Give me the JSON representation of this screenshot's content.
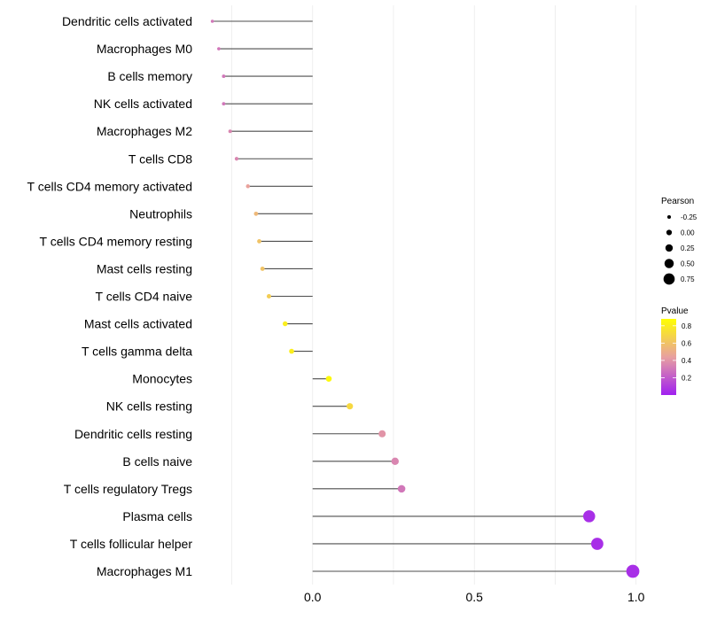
{
  "chart_data": {
    "type": "lollipop",
    "categories": [
      "Dendritic cells activated",
      "Macrophages M0",
      "B cells memory",
      "NK cells activated",
      "Macrophages M2",
      "T cells CD8",
      "T cells CD4 memory activated",
      "Neutrophils",
      "T cells CD4 memory resting",
      "Mast cells resting",
      "T cells CD4 naive",
      "Mast cells activated",
      "T cells gamma delta",
      "Monocytes",
      "NK cells resting",
      "Dendritic cells resting",
      "B cells naive",
      "T cells regulatory  Tregs",
      "Plasma cells",
      "T cells follicular helper",
      "Macrophages M1"
    ],
    "pearson": [
      -0.31,
      -0.29,
      -0.275,
      -0.275,
      -0.255,
      -0.235,
      -0.2,
      -0.175,
      -0.165,
      -0.155,
      -0.135,
      -0.085,
      -0.065,
      0.05,
      0.115,
      0.215,
      0.255,
      0.275,
      0.855,
      0.88,
      0.99
    ],
    "pvalue": [
      0.3,
      0.3,
      0.3,
      0.3,
      0.35,
      0.35,
      0.45,
      0.55,
      0.6,
      0.6,
      0.65,
      0.8,
      0.8,
      0.85,
      0.7,
      0.4,
      0.35,
      0.3,
      0.05,
      0.05,
      0.05
    ],
    "xlim": [
      -0.35,
      1.02
    ],
    "xticks": [
      0.0,
      0.5,
      1.0
    ],
    "xtick_labels": [
      "0.0",
      "0.5",
      "1.0"
    ],
    "legend_size": {
      "title": "Pearson",
      "values": [
        -0.25,
        0.0,
        0.25,
        0.5,
        0.75
      ],
      "labels": [
        "-0.25",
        "0.00",
        "0.25",
        "0.50",
        "0.75"
      ]
    },
    "legend_color": {
      "title": "Pvalue",
      "ticks": [
        0.8,
        0.6,
        0.4,
        0.2
      ],
      "tick_labels": [
        "0.8",
        "0.6",
        "0.4",
        "0.2"
      ],
      "range": [
        0.0,
        0.88
      ],
      "colors": {
        "low": "#a020f0",
        "mid": "#e8a0a0",
        "high": "#ffff00"
      }
    },
    "colors": {
      "segment": "#4d4d4d",
      "grid": "#ebebeb"
    }
  }
}
